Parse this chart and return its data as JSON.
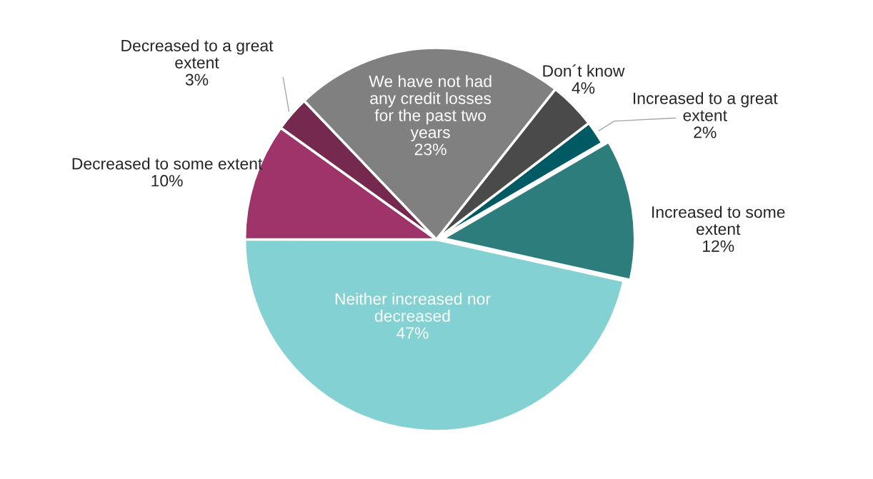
{
  "chart_data": {
    "type": "pie",
    "categories": [
      "Increased to a great\nextent",
      "Increased to some\nextent",
      "Neither increased nor\ndecreased",
      "Decreased to some extent",
      "Decreased to a great\nextent",
      "We have not had\nany credit losses\nfor the past two\nyears",
      "Don´t know"
    ],
    "values": [
      2,
      12,
      47,
      10,
      3,
      23,
      4
    ],
    "value_labels": [
      "2%",
      "12%",
      "47%",
      "10%",
      "3%",
      "23%",
      "4%"
    ],
    "colors": [
      "#005a64",
      "#2e7d7d",
      "#84d1d3",
      "#9e3469",
      "#76294f",
      "#808080",
      "#4a4a4a"
    ],
    "legend": false
  }
}
